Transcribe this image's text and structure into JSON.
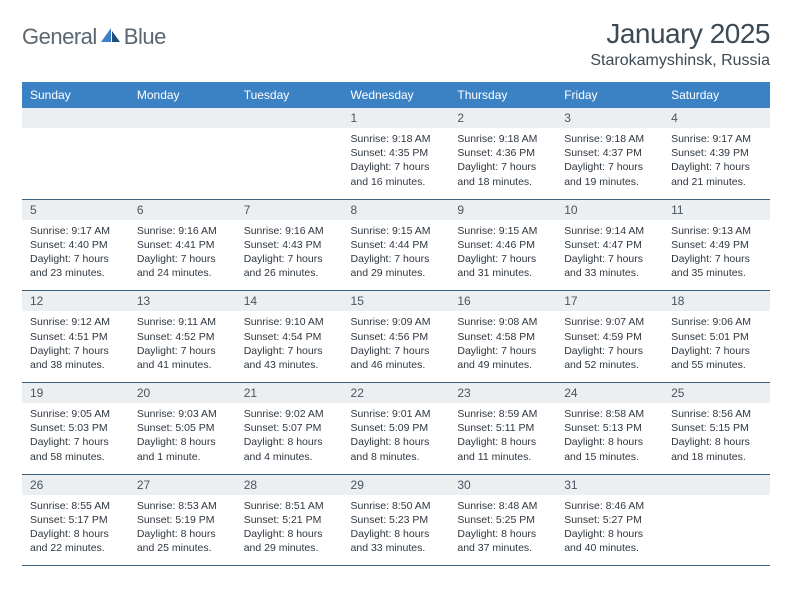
{
  "logo": {
    "text1": "General",
    "text2": "Blue"
  },
  "title": "January 2025",
  "location": "Starokamyshinsk, Russia",
  "colors": {
    "header_bg": "#3b82c4",
    "header_fg": "#ffffff",
    "daynum_bg": "#eceff1",
    "daynum_fg": "#4a5560",
    "body_fg": "#2e3740",
    "rule": "#3b5f7a",
    "logo_gray": "#5a6670",
    "logo_blue": "#3b7fc4"
  },
  "weekdays": [
    "Sunday",
    "Monday",
    "Tuesday",
    "Wednesday",
    "Thursday",
    "Friday",
    "Saturday"
  ],
  "weeks": [
    [
      {
        "blank": true
      },
      {
        "blank": true
      },
      {
        "blank": true
      },
      {
        "day": "1",
        "sunrise": "Sunrise: 9:18 AM",
        "sunset": "Sunset: 4:35 PM",
        "daylight": "Daylight: 7 hours and 16 minutes."
      },
      {
        "day": "2",
        "sunrise": "Sunrise: 9:18 AM",
        "sunset": "Sunset: 4:36 PM",
        "daylight": "Daylight: 7 hours and 18 minutes."
      },
      {
        "day": "3",
        "sunrise": "Sunrise: 9:18 AM",
        "sunset": "Sunset: 4:37 PM",
        "daylight": "Daylight: 7 hours and 19 minutes."
      },
      {
        "day": "4",
        "sunrise": "Sunrise: 9:17 AM",
        "sunset": "Sunset: 4:39 PM",
        "daylight": "Daylight: 7 hours and 21 minutes."
      }
    ],
    [
      {
        "day": "5",
        "sunrise": "Sunrise: 9:17 AM",
        "sunset": "Sunset: 4:40 PM",
        "daylight": "Daylight: 7 hours and 23 minutes."
      },
      {
        "day": "6",
        "sunrise": "Sunrise: 9:16 AM",
        "sunset": "Sunset: 4:41 PM",
        "daylight": "Daylight: 7 hours and 24 minutes."
      },
      {
        "day": "7",
        "sunrise": "Sunrise: 9:16 AM",
        "sunset": "Sunset: 4:43 PM",
        "daylight": "Daylight: 7 hours and 26 minutes."
      },
      {
        "day": "8",
        "sunrise": "Sunrise: 9:15 AM",
        "sunset": "Sunset: 4:44 PM",
        "daylight": "Daylight: 7 hours and 29 minutes."
      },
      {
        "day": "9",
        "sunrise": "Sunrise: 9:15 AM",
        "sunset": "Sunset: 4:46 PM",
        "daylight": "Daylight: 7 hours and 31 minutes."
      },
      {
        "day": "10",
        "sunrise": "Sunrise: 9:14 AM",
        "sunset": "Sunset: 4:47 PM",
        "daylight": "Daylight: 7 hours and 33 minutes."
      },
      {
        "day": "11",
        "sunrise": "Sunrise: 9:13 AM",
        "sunset": "Sunset: 4:49 PM",
        "daylight": "Daylight: 7 hours and 35 minutes."
      }
    ],
    [
      {
        "day": "12",
        "sunrise": "Sunrise: 9:12 AM",
        "sunset": "Sunset: 4:51 PM",
        "daylight": "Daylight: 7 hours and 38 minutes."
      },
      {
        "day": "13",
        "sunrise": "Sunrise: 9:11 AM",
        "sunset": "Sunset: 4:52 PM",
        "daylight": "Daylight: 7 hours and 41 minutes."
      },
      {
        "day": "14",
        "sunrise": "Sunrise: 9:10 AM",
        "sunset": "Sunset: 4:54 PM",
        "daylight": "Daylight: 7 hours and 43 minutes."
      },
      {
        "day": "15",
        "sunrise": "Sunrise: 9:09 AM",
        "sunset": "Sunset: 4:56 PM",
        "daylight": "Daylight: 7 hours and 46 minutes."
      },
      {
        "day": "16",
        "sunrise": "Sunrise: 9:08 AM",
        "sunset": "Sunset: 4:58 PM",
        "daylight": "Daylight: 7 hours and 49 minutes."
      },
      {
        "day": "17",
        "sunrise": "Sunrise: 9:07 AM",
        "sunset": "Sunset: 4:59 PM",
        "daylight": "Daylight: 7 hours and 52 minutes."
      },
      {
        "day": "18",
        "sunrise": "Sunrise: 9:06 AM",
        "sunset": "Sunset: 5:01 PM",
        "daylight": "Daylight: 7 hours and 55 minutes."
      }
    ],
    [
      {
        "day": "19",
        "sunrise": "Sunrise: 9:05 AM",
        "sunset": "Sunset: 5:03 PM",
        "daylight": "Daylight: 7 hours and 58 minutes."
      },
      {
        "day": "20",
        "sunrise": "Sunrise: 9:03 AM",
        "sunset": "Sunset: 5:05 PM",
        "daylight": "Daylight: 8 hours and 1 minute."
      },
      {
        "day": "21",
        "sunrise": "Sunrise: 9:02 AM",
        "sunset": "Sunset: 5:07 PM",
        "daylight": "Daylight: 8 hours and 4 minutes."
      },
      {
        "day": "22",
        "sunrise": "Sunrise: 9:01 AM",
        "sunset": "Sunset: 5:09 PM",
        "daylight": "Daylight: 8 hours and 8 minutes."
      },
      {
        "day": "23",
        "sunrise": "Sunrise: 8:59 AM",
        "sunset": "Sunset: 5:11 PM",
        "daylight": "Daylight: 8 hours and 11 minutes."
      },
      {
        "day": "24",
        "sunrise": "Sunrise: 8:58 AM",
        "sunset": "Sunset: 5:13 PM",
        "daylight": "Daylight: 8 hours and 15 minutes."
      },
      {
        "day": "25",
        "sunrise": "Sunrise: 8:56 AM",
        "sunset": "Sunset: 5:15 PM",
        "daylight": "Daylight: 8 hours and 18 minutes."
      }
    ],
    [
      {
        "day": "26",
        "sunrise": "Sunrise: 8:55 AM",
        "sunset": "Sunset: 5:17 PM",
        "daylight": "Daylight: 8 hours and 22 minutes."
      },
      {
        "day": "27",
        "sunrise": "Sunrise: 8:53 AM",
        "sunset": "Sunset: 5:19 PM",
        "daylight": "Daylight: 8 hours and 25 minutes."
      },
      {
        "day": "28",
        "sunrise": "Sunrise: 8:51 AM",
        "sunset": "Sunset: 5:21 PM",
        "daylight": "Daylight: 8 hours and 29 minutes."
      },
      {
        "day": "29",
        "sunrise": "Sunrise: 8:50 AM",
        "sunset": "Sunset: 5:23 PM",
        "daylight": "Daylight: 8 hours and 33 minutes."
      },
      {
        "day": "30",
        "sunrise": "Sunrise: 8:48 AM",
        "sunset": "Sunset: 5:25 PM",
        "daylight": "Daylight: 8 hours and 37 minutes."
      },
      {
        "day": "31",
        "sunrise": "Sunrise: 8:46 AM",
        "sunset": "Sunset: 5:27 PM",
        "daylight": "Daylight: 8 hours and 40 minutes."
      },
      {
        "blank": true
      }
    ]
  ]
}
